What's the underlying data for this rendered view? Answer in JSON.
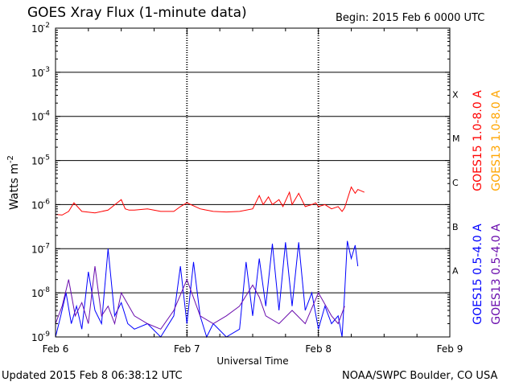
{
  "header": {
    "title": "GOES Xray Flux (1-minute data)",
    "begin": "Begin:  2015 Feb 6 0000 UTC"
  },
  "footer": {
    "updated": "Updated 2015 Feb  8 06:38:12 UTC",
    "credit": "NOAA/SWPC Boulder, CO USA"
  },
  "chart_data": {
    "type": "line",
    "title": "GOES Xray Flux (1-minute data)",
    "xlabel": "Universal Time",
    "ylabel": "Watts m-2",
    "ylabel_main": "Watts m",
    "ylabel_sup": "-2",
    "yscale": "log",
    "ylim": [
      1e-09,
      0.01
    ],
    "y_ticks": [
      {
        "value": 0.01,
        "base": "10",
        "exp": "-2"
      },
      {
        "value": 0.001,
        "base": "10",
        "exp": "-3"
      },
      {
        "value": 0.0001,
        "base": "10",
        "exp": "-4"
      },
      {
        "value": 1e-05,
        "base": "10",
        "exp": "-5"
      },
      {
        "value": 1e-06,
        "base": "10",
        "exp": "-6"
      },
      {
        "value": 1e-07,
        "base": "10",
        "exp": "-7"
      },
      {
        "value": 1e-08,
        "base": "10",
        "exp": "-8"
      },
      {
        "value": 1e-09,
        "base": "10",
        "exp": "-9"
      }
    ],
    "x_ticks": [
      "Feb 6",
      "Feb 7",
      "Feb 8",
      "Feb 9"
    ],
    "xlim_days": [
      0,
      3
    ],
    "flare_classes": [
      {
        "label": "X",
        "level": 0.0001
      },
      {
        "label": "M",
        "level": 1e-05
      },
      {
        "label": "C",
        "level": 1e-06
      },
      {
        "label": "B",
        "level": 1e-07
      },
      {
        "label": "A",
        "level": 1e-08
      }
    ],
    "grid": true,
    "legend_position": "right",
    "series": [
      {
        "name": "GOES15 1.0-8.0 A",
        "color": "#ff0000",
        "x_days": [
          0,
          0.05,
          0.1,
          0.14,
          0.2,
          0.3,
          0.4,
          0.5,
          0.53,
          0.56,
          0.6,
          0.7,
          0.8,
          0.9,
          0.95,
          1.0,
          1.1,
          1.2,
          1.3,
          1.4,
          1.5,
          1.55,
          1.58,
          1.62,
          1.65,
          1.7,
          1.73,
          1.78,
          1.8,
          1.85,
          1.9,
          1.95,
          1.98,
          2.0,
          2.05,
          2.1,
          2.15,
          2.18,
          2.2,
          2.25,
          2.28,
          2.3,
          2.35
        ],
        "y": [
          6e-07,
          5.8e-07,
          7e-07,
          1.1e-06,
          7e-07,
          6.5e-07,
          7.5e-07,
          1.3e-06,
          8e-07,
          7.5e-07,
          7.5e-07,
          8e-07,
          7e-07,
          7e-07,
          9e-07,
          1.1e-06,
          8e-07,
          7e-07,
          6.8e-07,
          7e-07,
          8e-07,
          1.6e-06,
          1e-06,
          1.5e-06,
          1e-06,
          1.3e-06,
          9e-07,
          1.9e-06,
          1e-06,
          1.8e-06,
          9e-07,
          1e-06,
          1.1e-06,
          9e-07,
          1e-06,
          8e-07,
          9e-07,
          7e-07,
          8.5e-07,
          2.5e-06,
          1.8e-06,
          2.2e-06,
          1.9e-06
        ]
      },
      {
        "name": "GOES13 1.0-8.0 A",
        "color": "#ffa500",
        "x_days": [],
        "y": []
      },
      {
        "name": "GOES15 0.5-4.0 A",
        "color": "#0000ff",
        "x_days": [
          0,
          0.04,
          0.08,
          0.12,
          0.16,
          0.2,
          0.25,
          0.3,
          0.35,
          0.4,
          0.45,
          0.5,
          0.55,
          0.6,
          0.7,
          0.8,
          0.9,
          0.95,
          1.0,
          1.05,
          1.1,
          1.15,
          1.2,
          1.3,
          1.4,
          1.45,
          1.5,
          1.55,
          1.6,
          1.65,
          1.7,
          1.75,
          1.8,
          1.85,
          1.9,
          1.95,
          2.0,
          2.05,
          2.1,
          2.15,
          2.18,
          2.2,
          2.22,
          2.25,
          2.28,
          2.3
        ],
        "y": [
          1e-09,
          3e-09,
          1e-08,
          2e-09,
          5e-09,
          1.5e-09,
          3e-08,
          4e-09,
          2e-09,
          1e-07,
          3e-09,
          6e-09,
          2e-09,
          1.5e-09,
          2e-09,
          1e-09,
          3e-09,
          4e-08,
          2e-09,
          5e-08,
          3e-09,
          1e-09,
          2e-09,
          1e-09,
          1.5e-09,
          5e-08,
          3e-09,
          6e-08,
          5e-09,
          1.3e-07,
          4e-09,
          1.4e-07,
          5e-09,
          1.4e-07,
          4e-09,
          1e-08,
          1.5e-09,
          5e-09,
          2e-09,
          3e-09,
          1e-09,
          1e-08,
          1.5e-07,
          6e-08,
          1.2e-07,
          4e-08
        ]
      },
      {
        "name": "GOES13 0.5-4.0 A",
        "color": "#6a0dad",
        "x_days": [
          0,
          0.05,
          0.1,
          0.15,
          0.2,
          0.25,
          0.3,
          0.35,
          0.4,
          0.45,
          0.5,
          0.6,
          0.7,
          0.8,
          0.9,
          1.0,
          1.1,
          1.2,
          1.3,
          1.4,
          1.5,
          1.55,
          1.6,
          1.7,
          1.8,
          1.9,
          2.0,
          2.1,
          2.15,
          2.2
        ],
        "y": [
          2e-09,
          5e-09,
          2e-08,
          3e-09,
          6e-09,
          2e-09,
          4e-08,
          3e-09,
          5e-09,
          2e-09,
          1e-08,
          3e-09,
          2e-09,
          1.5e-09,
          4e-09,
          2e-08,
          3e-09,
          2e-09,
          3e-09,
          5e-09,
          1.5e-08,
          8e-09,
          3e-09,
          2e-09,
          4e-09,
          2e-09,
          1e-08,
          3e-09,
          2e-09,
          5e-09
        ]
      }
    ]
  }
}
